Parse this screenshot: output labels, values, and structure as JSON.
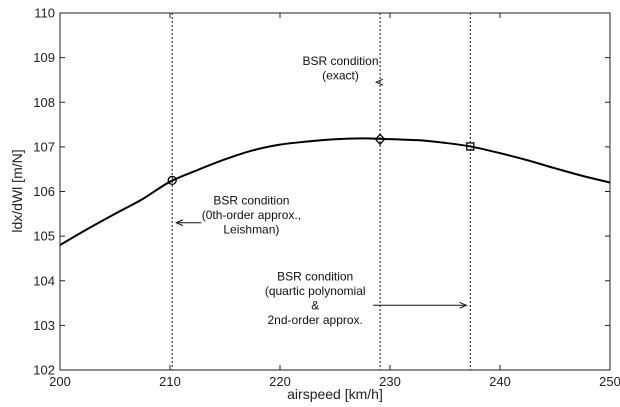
{
  "chart_data": {
    "type": "line",
    "xlabel": "airspeed [km/h]",
    "ylabel": "ldx/dWl [m/N]",
    "xlim": [
      200,
      250
    ],
    "ylim": [
      102,
      110
    ],
    "x_ticks": [
      200,
      210,
      220,
      230,
      240,
      250
    ],
    "y_ticks": [
      102,
      103,
      104,
      105,
      106,
      107,
      108,
      109,
      110
    ],
    "grid": false,
    "series": [
      {
        "x": [
          200,
          202.5,
          205,
          207.5,
          210,
          212.5,
          215,
          217.5,
          220,
          222.5,
          225,
          227.5,
          229.2,
          232.5,
          235,
          237.3,
          240,
          242.5,
          245,
          247.5,
          250
        ],
        "values": [
          104.8,
          105.16,
          105.5,
          105.83,
          106.22,
          106.48,
          106.72,
          106.92,
          107.05,
          107.12,
          107.17,
          107.19,
          107.18,
          107.15,
          107.09,
          107.01,
          106.86,
          106.7,
          106.52,
          106.35,
          106.2
        ]
      }
    ],
    "vertical_lines": [
      210.2,
      229.1,
      237.3
    ],
    "markers": [
      {
        "x": 210.2,
        "y": 106.25,
        "shape": "circle"
      },
      {
        "x": 229.1,
        "y": 107.17,
        "shape": "diamond"
      },
      {
        "x": 237.3,
        "y": 107.01,
        "shape": "square"
      }
    ],
    "annotations": [
      {
        "lines": [
          "BSR condition",
          "(exact)"
        ],
        "arrow_to": {
          "x": 229.1,
          "y": 108.45
        },
        "text_at": {
          "x": 225.5,
          "y": 108.45
        }
      },
      {
        "lines": [
          "BSR condition",
          "(0th-order approx.,",
          "Leishman)"
        ],
        "arrow_to": {
          "x": 210.2,
          "y": 105.3
        },
        "text_at": {
          "x": 217.4,
          "y": 105.3
        }
      },
      {
        "lines": [
          "BSR condition",
          "(quartic polynomial",
          "&",
          "2nd-order approx."
        ],
        "arrow_to": {
          "x": 237.3,
          "y": 103.45
        },
        "text_at": {
          "x": 223.2,
          "y": 103.45
        }
      }
    ]
  }
}
